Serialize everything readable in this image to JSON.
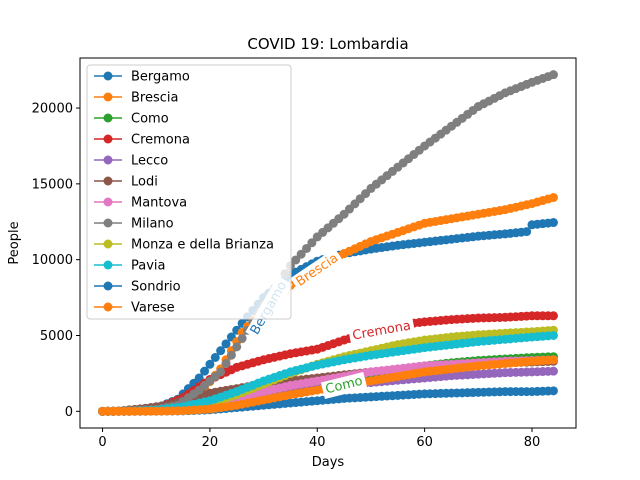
{
  "chart_data": {
    "type": "line",
    "title": "COVID 19: Lombardia",
    "xlabel": "Days",
    "ylabel": "People",
    "xlim": [
      -4.2,
      88.2
    ],
    "ylim": [
      -1100,
      23300
    ],
    "xticks": [
      0,
      20,
      40,
      60,
      80
    ],
    "yticks": [
      0,
      5000,
      10000,
      15000,
      20000
    ],
    "grid": false,
    "legend_position": "top-left",
    "markers": true,
    "x_start": 0,
    "x_end": 84,
    "series": [
      {
        "name": "Bergamo",
        "color": "#1f77b4",
        "anchors": [
          [
            0,
            0
          ],
          [
            5,
            20
          ],
          [
            10,
            200
          ],
          [
            14,
            800
          ],
          [
            18,
            2200
          ],
          [
            22,
            4000
          ],
          [
            26,
            5800
          ],
          [
            30,
            7500
          ],
          [
            35,
            9000
          ],
          [
            40,
            9900
          ],
          [
            45,
            10400
          ],
          [
            50,
            10700
          ],
          [
            55,
            10950
          ],
          [
            60,
            11150
          ],
          [
            65,
            11350
          ],
          [
            70,
            11550
          ],
          [
            75,
            11700
          ],
          [
            79,
            11850
          ],
          [
            80,
            12300
          ],
          [
            84,
            12450
          ]
        ]
      },
      {
        "name": "Brescia",
        "color": "#ff7f0e",
        "anchors": [
          [
            0,
            0
          ],
          [
            6,
            10
          ],
          [
            10,
            80
          ],
          [
            14,
            300
          ],
          [
            18,
            1100
          ],
          [
            22,
            2800
          ],
          [
            26,
            5200
          ],
          [
            30,
            6800
          ],
          [
            35,
            8300
          ],
          [
            40,
            9400
          ],
          [
            45,
            10400
          ],
          [
            50,
            11200
          ],
          [
            55,
            11800
          ],
          [
            60,
            12400
          ],
          [
            65,
            12700
          ],
          [
            70,
            13000
          ],
          [
            75,
            13300
          ],
          [
            80,
            13700
          ],
          [
            84,
            14100
          ]
        ]
      },
      {
        "name": "Como",
        "color": "#2ca02c",
        "anchors": [
          [
            0,
            0
          ],
          [
            10,
            20
          ],
          [
            15,
            60
          ],
          [
            20,
            150
          ],
          [
            25,
            350
          ],
          [
            30,
            700
          ],
          [
            35,
            1150
          ],
          [
            40,
            1600
          ],
          [
            45,
            2000
          ],
          [
            50,
            2400
          ],
          [
            55,
            2700
          ],
          [
            60,
            3000
          ],
          [
            65,
            3200
          ],
          [
            70,
            3350
          ],
          [
            75,
            3450
          ],
          [
            80,
            3550
          ],
          [
            84,
            3600
          ]
        ]
      },
      {
        "name": "Cremona",
        "color": "#d62728",
        "anchors": [
          [
            0,
            0
          ],
          [
            5,
            30
          ],
          [
            10,
            150
          ],
          [
            15,
            900
          ],
          [
            20,
            2100
          ],
          [
            25,
            2900
          ],
          [
            30,
            3400
          ],
          [
            35,
            3800
          ],
          [
            40,
            4100
          ],
          [
            45,
            4700
          ],
          [
            50,
            5200
          ],
          [
            55,
            5700
          ],
          [
            60,
            5900
          ],
          [
            65,
            6050
          ],
          [
            70,
            6150
          ],
          [
            75,
            6200
          ],
          [
            80,
            6300
          ],
          [
            84,
            6300
          ]
        ]
      },
      {
        "name": "Lecco",
        "color": "#9467bd",
        "anchors": [
          [
            0,
            0
          ],
          [
            10,
            20
          ],
          [
            15,
            100
          ],
          [
            20,
            300
          ],
          [
            25,
            700
          ],
          [
            30,
            1050
          ],
          [
            35,
            1300
          ],
          [
            40,
            1550
          ],
          [
            45,
            1750
          ],
          [
            50,
            1900
          ],
          [
            55,
            2050
          ],
          [
            60,
            2200
          ],
          [
            65,
            2350
          ],
          [
            70,
            2450
          ],
          [
            75,
            2550
          ],
          [
            80,
            2600
          ],
          [
            84,
            2650
          ]
        ]
      },
      {
        "name": "Lodi",
        "color": "#8c564b",
        "anchors": [
          [
            0,
            0
          ],
          [
            3,
            20
          ],
          [
            8,
            200
          ],
          [
            12,
            400
          ],
          [
            15,
            700
          ],
          [
            20,
            1200
          ],
          [
            25,
            1500
          ],
          [
            30,
            1800
          ],
          [
            35,
            2000
          ],
          [
            40,
            2200
          ],
          [
            45,
            2400
          ],
          [
            50,
            2600
          ],
          [
            55,
            2750
          ],
          [
            60,
            2900
          ],
          [
            65,
            3000
          ],
          [
            70,
            3100
          ],
          [
            75,
            3200
          ],
          [
            80,
            3250
          ],
          [
            84,
            3300
          ]
        ]
      },
      {
        "name": "Mantova",
        "color": "#e377c2",
        "anchors": [
          [
            0,
            0
          ],
          [
            10,
            20
          ],
          [
            15,
            80
          ],
          [
            20,
            300
          ],
          [
            25,
            800
          ],
          [
            30,
            1300
          ],
          [
            35,
            1700
          ],
          [
            40,
            2000
          ],
          [
            45,
            2300
          ],
          [
            50,
            2600
          ],
          [
            55,
            2800
          ],
          [
            60,
            3000
          ],
          [
            65,
            3100
          ],
          [
            70,
            3200
          ],
          [
            75,
            3300
          ],
          [
            80,
            3350
          ],
          [
            84,
            3400
          ]
        ]
      },
      {
        "name": "Milano",
        "color": "#7f7f7f",
        "anchors": [
          [
            0,
            0
          ],
          [
            5,
            30
          ],
          [
            10,
            120
          ],
          [
            14,
            400
          ],
          [
            18,
            1400
          ],
          [
            22,
            2600
          ],
          [
            26,
            4800
          ],
          [
            30,
            7000
          ],
          [
            35,
            9600
          ],
          [
            40,
            11500
          ],
          [
            45,
            13000
          ],
          [
            50,
            14700
          ],
          [
            55,
            16100
          ],
          [
            60,
            17500
          ],
          [
            65,
            18800
          ],
          [
            70,
            20100
          ],
          [
            75,
            21000
          ],
          [
            80,
            21700
          ],
          [
            84,
            22200
          ]
        ]
      },
      {
        "name": "Monza e della Brianza",
        "color": "#bcbd22",
        "anchors": [
          [
            0,
            0
          ],
          [
            10,
            20
          ],
          [
            15,
            150
          ],
          [
            20,
            500
          ],
          [
            25,
            1100
          ],
          [
            30,
            1800
          ],
          [
            35,
            2500
          ],
          [
            40,
            3100
          ],
          [
            45,
            3600
          ],
          [
            50,
            4000
          ],
          [
            55,
            4400
          ],
          [
            60,
            4700
          ],
          [
            65,
            4900
          ],
          [
            70,
            5050
          ],
          [
            75,
            5150
          ],
          [
            80,
            5250
          ],
          [
            84,
            5350
          ]
        ]
      },
      {
        "name": "Pavia",
        "color": "#17becf",
        "anchors": [
          [
            0,
            0
          ],
          [
            5,
            20
          ],
          [
            10,
            80
          ],
          [
            15,
            300
          ],
          [
            20,
            700
          ],
          [
            25,
            1300
          ],
          [
            30,
            2000
          ],
          [
            35,
            2600
          ],
          [
            40,
            3050
          ],
          [
            45,
            3400
          ],
          [
            50,
            3700
          ],
          [
            55,
            3950
          ],
          [
            60,
            4200
          ],
          [
            65,
            4400
          ],
          [
            70,
            4600
          ],
          [
            75,
            4750
          ],
          [
            80,
            4900
          ],
          [
            84,
            5000
          ]
        ]
      },
      {
        "name": "Sondrio",
        "color": "#1f77b4",
        "anchors": [
          [
            0,
            0
          ],
          [
            10,
            10
          ],
          [
            15,
            30
          ],
          [
            20,
            100
          ],
          [
            25,
            250
          ],
          [
            30,
            400
          ],
          [
            35,
            550
          ],
          [
            40,
            700
          ],
          [
            45,
            850
          ],
          [
            50,
            950
          ],
          [
            55,
            1050
          ],
          [
            60,
            1150
          ],
          [
            65,
            1200
          ],
          [
            70,
            1250
          ],
          [
            75,
            1300
          ],
          [
            80,
            1300
          ],
          [
            84,
            1350
          ]
        ]
      },
      {
        "name": "Varese",
        "color": "#ff7f0e",
        "anchors": [
          [
            0,
            0
          ],
          [
            10,
            10
          ],
          [
            15,
            40
          ],
          [
            20,
            150
          ],
          [
            25,
            400
          ],
          [
            30,
            750
          ],
          [
            35,
            1100
          ],
          [
            40,
            1400
          ],
          [
            45,
            1700
          ],
          [
            50,
            2000
          ],
          [
            55,
            2300
          ],
          [
            60,
            2600
          ],
          [
            65,
            2800
          ],
          [
            70,
            3000
          ],
          [
            75,
            3150
          ],
          [
            80,
            3300
          ],
          [
            84,
            3400
          ]
        ]
      }
    ],
    "annotations": [
      {
        "text": "Bergamo",
        "color": "#1f77b4",
        "box": true,
        "x": 31,
        "y": 6800,
        "angle": -60
      },
      {
        "text": "Brescia",
        "color": "#ff7f0e",
        "box": true,
        "x": 40,
        "y": 9300,
        "angle": -34
      },
      {
        "text": "Cremona",
        "color": "#d62728",
        "box": true,
        "x": 52,
        "y": 5300,
        "angle": -10
      },
      {
        "text": "Como",
        "color": "#2ca02c",
        "box": true,
        "x": 45,
        "y": 1700,
        "angle": -14
      }
    ]
  }
}
